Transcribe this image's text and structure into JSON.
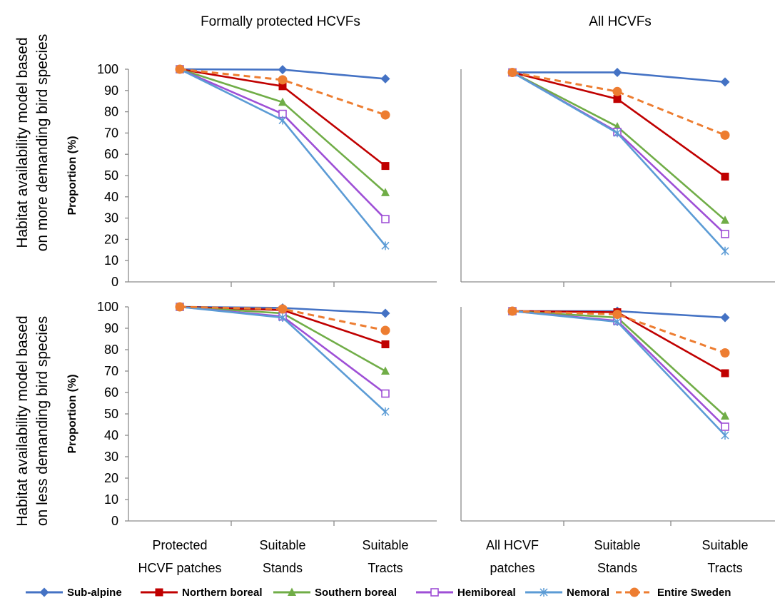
{
  "figure": {
    "row_titles": [
      [
        "Habitat availability model based",
        "on more demanding bird species"
      ],
      [
        "Habitat availability model based",
        "on less demanding bird species"
      ]
    ],
    "col_titles": [
      "Formally protected HCVFs",
      "All HCVFs"
    ]
  },
  "legend": [
    {
      "name": "Sub-alpine",
      "color": "#4472c4",
      "marker": "diamond",
      "dash": false
    },
    {
      "name": "Northern boreal",
      "color": "#c00000",
      "marker": "square",
      "dash": false
    },
    {
      "name": "Southern boreal",
      "color": "#70ad47",
      "marker": "triangle",
      "dash": false
    },
    {
      "name": "Hemiboreal",
      "color": "#9e4fd6",
      "marker": "open-square",
      "dash": false
    },
    {
      "name": "Nemoral",
      "color": "#5b9bd5",
      "marker": "asterisk",
      "dash": false
    },
    {
      "name": "Entire Sweden",
      "color": "#ed7d31",
      "marker": "circle",
      "dash": true
    }
  ],
  "chart_data": [
    {
      "type": "line",
      "title": "Formally protected HCVFs",
      "ylabel": "Proportion (%)",
      "ylim": [
        0,
        100
      ],
      "yticks": [
        0,
        10,
        20,
        30,
        40,
        50,
        60,
        70,
        80,
        90,
        100
      ],
      "categories": [
        [
          "Protected",
          "HCVF patches"
        ],
        [
          "Suitable",
          "Stands"
        ],
        [
          "Suitable",
          "Tracts"
        ]
      ],
      "series": [
        {
          "name": "Sub-alpine",
          "values": [
            100,
            99.8,
            95.5
          ]
        },
        {
          "name": "Northern boreal",
          "values": [
            100,
            92,
            54.5
          ]
        },
        {
          "name": "Southern boreal",
          "values": [
            100,
            84.5,
            42
          ]
        },
        {
          "name": "Hemiboreal",
          "values": [
            100,
            79,
            29.5
          ]
        },
        {
          "name": "Nemoral",
          "values": [
            100,
            76,
            17
          ]
        },
        {
          "name": "Entire Sweden",
          "values": [
            100,
            95,
            78.5
          ]
        }
      ]
    },
    {
      "type": "line",
      "title": "All HCVFs",
      "ylabel": "",
      "ylim": [
        0,
        100
      ],
      "yticks": [],
      "categories": [
        [
          "All HCVF",
          "patches"
        ],
        [
          "Suitable",
          "Stands"
        ],
        [
          "Suitable",
          "Tracts"
        ]
      ],
      "series": [
        {
          "name": "Sub-alpine",
          "values": [
            98.5,
            98.5,
            94
          ]
        },
        {
          "name": "Northern boreal",
          "values": [
            98.5,
            86,
            49.5
          ]
        },
        {
          "name": "Southern boreal",
          "values": [
            98.5,
            73,
            29
          ]
        },
        {
          "name": "Hemiboreal",
          "values": [
            98.5,
            70.5,
            22.5
          ]
        },
        {
          "name": "Nemoral",
          "values": [
            98.5,
            70,
            14.5
          ]
        },
        {
          "name": "Entire Sweden",
          "values": [
            98.5,
            89.5,
            69
          ]
        }
      ]
    },
    {
      "type": "line",
      "title": "",
      "ylabel": "Proportion (%)",
      "ylim": [
        0,
        100
      ],
      "yticks": [
        0,
        10,
        20,
        30,
        40,
        50,
        60,
        70,
        80,
        90,
        100
      ],
      "categories": [
        [
          "Protected",
          "HCVF patches"
        ],
        [
          "Suitable",
          "Stands"
        ],
        [
          "Suitable",
          "Tracts"
        ]
      ],
      "series": [
        {
          "name": "Sub-alpine",
          "values": [
            100,
            99.5,
            97
          ]
        },
        {
          "name": "Northern boreal",
          "values": [
            100,
            98.5,
            82.5
          ]
        },
        {
          "name": "Southern boreal",
          "values": [
            100,
            97,
            70
          ]
        },
        {
          "name": "Hemiboreal",
          "values": [
            100,
            95.5,
            59.5
          ]
        },
        {
          "name": "Nemoral",
          "values": [
            100,
            95,
            51
          ]
        },
        {
          "name": "Entire Sweden",
          "values": [
            100,
            99,
            89
          ]
        }
      ]
    },
    {
      "type": "line",
      "title": "",
      "ylabel": "",
      "ylim": [
        0,
        100
      ],
      "yticks": [],
      "categories": [
        [
          "All HCVF",
          "patches"
        ],
        [
          "Suitable",
          "Stands"
        ],
        [
          "Suitable",
          "Tracts"
        ]
      ],
      "series": [
        {
          "name": "Sub-alpine",
          "values": [
            98,
            98,
            95
          ]
        },
        {
          "name": "Northern boreal",
          "values": [
            98,
            97.5,
            69
          ]
        },
        {
          "name": "Southern boreal",
          "values": [
            98,
            95,
            49
          ]
        },
        {
          "name": "Hemiboreal",
          "values": [
            98,
            93.5,
            44
          ]
        },
        {
          "name": "Nemoral",
          "values": [
            98,
            93,
            40
          ]
        },
        {
          "name": "Entire Sweden",
          "values": [
            98,
            96.5,
            78.5
          ]
        }
      ]
    }
  ]
}
